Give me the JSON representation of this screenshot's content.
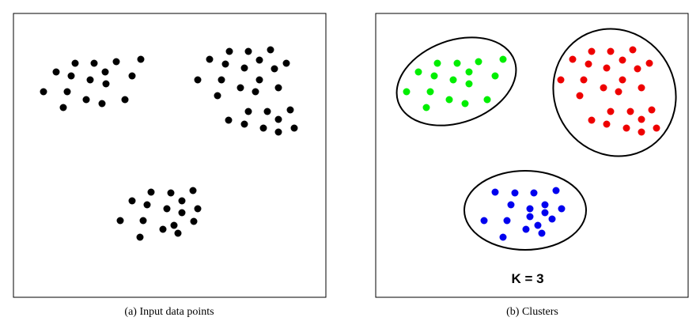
{
  "panels": [
    {
      "id": "input",
      "caption": "(a) Input data points",
      "color": "#000000",
      "points": [
        [
          95,
          80
        ],
        [
          119,
          80
        ],
        [
          147,
          78
        ],
        [
          178,
          75
        ],
        [
          71,
          91
        ],
        [
          90,
          96
        ],
        [
          133,
          91
        ],
        [
          167,
          96
        ],
        [
          114,
          101
        ],
        [
          134,
          106
        ],
        [
          55,
          116
        ],
        [
          85,
          116
        ],
        [
          109,
          126
        ],
        [
          129,
          131
        ],
        [
          158,
          126
        ],
        [
          80,
          136
        ],
        [
          290,
          65
        ],
        [
          314,
          65
        ],
        [
          342,
          63
        ],
        [
          265,
          75
        ],
        [
          285,
          81
        ],
        [
          328,
          76
        ],
        [
          362,
          80
        ],
        [
          309,
          86
        ],
        [
          347,
          87
        ],
        [
          250,
          101
        ],
        [
          280,
          101
        ],
        [
          328,
          101
        ],
        [
          304,
          111
        ],
        [
          323,
          116
        ],
        [
          352,
          111
        ],
        [
          275,
          121
        ],
        [
          314,
          141
        ],
        [
          338,
          141
        ],
        [
          367,
          139
        ],
        [
          289,
          152
        ],
        [
          309,
          157
        ],
        [
          352,
          151
        ],
        [
          333,
          162
        ],
        [
          372,
          162
        ],
        [
          352,
          167
        ],
        [
          191,
          243
        ],
        [
          216,
          244
        ],
        [
          244,
          241
        ],
        [
          167,
          254
        ],
        [
          186,
          259
        ],
        [
          230,
          254
        ],
        [
          211,
          264
        ],
        [
          250,
          264
        ],
        [
          230,
          269
        ],
        [
          152,
          279
        ],
        [
          181,
          279
        ],
        [
          245,
          280
        ],
        [
          220,
          285
        ],
        [
          206,
          290
        ],
        [
          225,
          295
        ],
        [
          177,
          300
        ]
      ]
    },
    {
      "id": "clusters",
      "caption": "(b) Clusters",
      "k_label": "K = 3",
      "clusters": [
        {
          "name": "green",
          "color": "#00ee00",
          "points": [
            [
              553,
              80
            ],
            [
              578,
              80
            ],
            [
              605,
              78
            ],
            [
              636,
              75
            ],
            [
              529,
              91
            ],
            [
              549,
              96
            ],
            [
              593,
              91
            ],
            [
              626,
              96
            ],
            [
              573,
              101
            ],
            [
              593,
              106
            ],
            [
              514,
              116
            ],
            [
              544,
              116
            ],
            [
              568,
              126
            ],
            [
              588,
              131
            ],
            [
              616,
              126
            ],
            [
              539,
              136
            ]
          ]
        },
        {
          "name": "red",
          "color": "#ee0000",
          "points": [
            [
              748,
              65
            ],
            [
              772,
              65
            ],
            [
              800,
              63
            ],
            [
              724,
              75
            ],
            [
              744,
              81
            ],
            [
              787,
              76
            ],
            [
              821,
              80
            ],
            [
              767,
              86
            ],
            [
              806,
              87
            ],
            [
              709,
              101
            ],
            [
              738,
              101
            ],
            [
              787,
              101
            ],
            [
              763,
              111
            ],
            [
              782,
              116
            ],
            [
              811,
              111
            ],
            [
              733,
              121
            ],
            [
              772,
              141
            ],
            [
              797,
              141
            ],
            [
              824,
              139
            ],
            [
              748,
              152
            ],
            [
              767,
              157
            ],
            [
              811,
              151
            ],
            [
              792,
              162
            ],
            [
              830,
              162
            ],
            [
              811,
              167
            ]
          ]
        },
        {
          "name": "blue",
          "color": "#0000ee",
          "points": [
            [
              626,
              243
            ],
            [
              651,
              244
            ],
            [
              675,
              244
            ],
            [
              703,
              241
            ],
            [
              646,
              259
            ],
            [
              670,
              264
            ],
            [
              689,
              259
            ],
            [
              710,
              264
            ],
            [
              689,
              269
            ],
            [
              612,
              279
            ],
            [
              641,
              279
            ],
            [
              670,
              274
            ],
            [
              698,
              277
            ],
            [
              680,
              285
            ],
            [
              665,
              290
            ],
            [
              685,
              295
            ],
            [
              636,
              300
            ]
          ]
        }
      ]
    }
  ]
}
